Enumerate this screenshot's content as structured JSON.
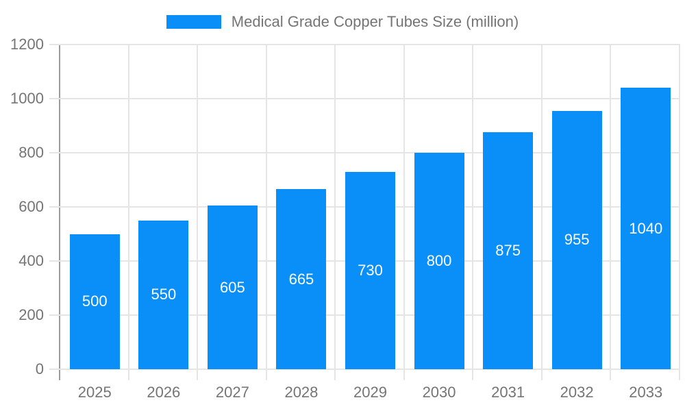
{
  "legend": {
    "label": "Medical Grade Copper Tubes Size (million)"
  },
  "colors": {
    "bar": "#0a8ff9",
    "grid": "#e5e5e5",
    "axis_line": "#9b9b9b",
    "axis_text": "#757575",
    "value_label_text": "#ffffff",
    "background": "#ffffff"
  },
  "chart_data": {
    "type": "bar",
    "title": "Medical Grade Copper Tubes Size (million)",
    "categories": [
      "2025",
      "2026",
      "2027",
      "2028",
      "2029",
      "2030",
      "2031",
      "2032",
      "2033"
    ],
    "values": [
      500,
      550,
      605,
      665,
      730,
      800,
      875,
      955,
      1040
    ],
    "series": [
      {
        "name": "Medical Grade Copper Tubes Size (million)",
        "values": [
          500,
          550,
          605,
          665,
          730,
          800,
          875,
          955,
          1040
        ]
      }
    ],
    "xlabel": "",
    "ylabel": "",
    "ylim": [
      0,
      1200
    ],
    "yticks": [
      0,
      200,
      400,
      600,
      800,
      1000,
      1200
    ],
    "grid": true,
    "legend_position": "top-center",
    "value_labels_position": "inside-center"
  }
}
